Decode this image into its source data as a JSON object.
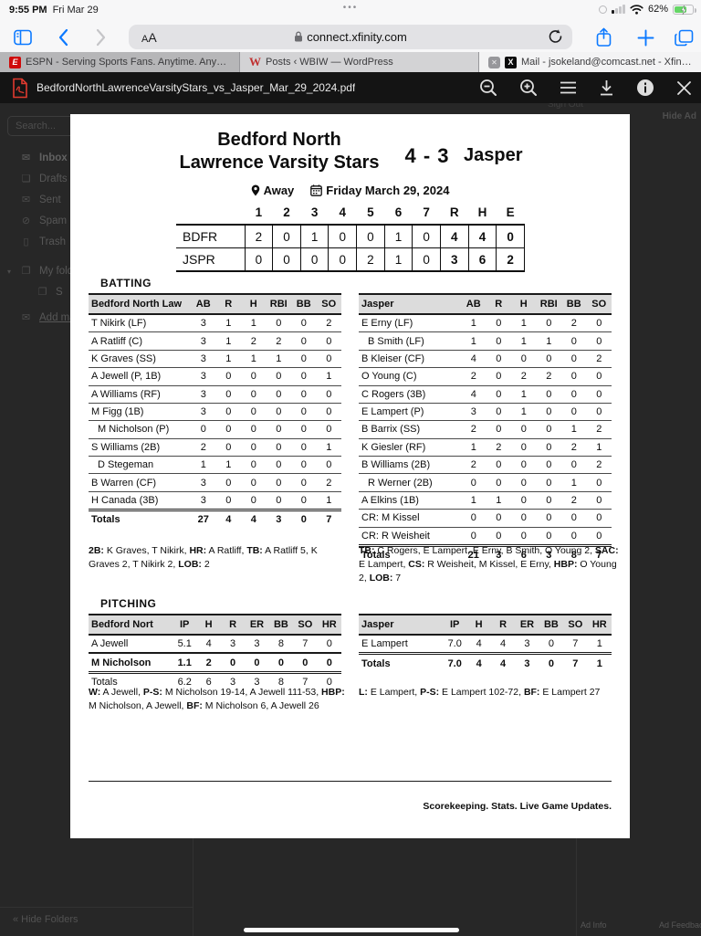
{
  "status_bar": {
    "time": "9:55 PM",
    "date": "Fri Mar 29",
    "ellipsis": "•••",
    "battery": "62%"
  },
  "browser": {
    "reader_label_small": "A",
    "reader_label_big": "A",
    "url": "connect.xfinity.com"
  },
  "tabs": [
    {
      "label": "ESPN - Serving Sports Fans. Anytime. Anywh...",
      "favicon": "espn-icon"
    },
    {
      "label": "Posts ‹ WBIW — WordPress",
      "favicon": "wordpress-icon"
    },
    {
      "label": "Mail - jsokeland@comcast.net - Xfinity Conn...",
      "favicon": "xfinity-icon",
      "close": "✕"
    }
  ],
  "pdf_toolbar": {
    "filename": "BedfordNorthLawrenceVarsityStars_vs_Jasper_Mar_29_2024.pdf"
  },
  "mail_sidebar": {
    "search_placeholder": "Search...",
    "items": [
      {
        "icon": "✉",
        "label": "Inbox"
      },
      {
        "icon": "❏",
        "label": "Drafts"
      },
      {
        "icon": "✉",
        "label": "Sent"
      },
      {
        "icon": "⊘",
        "label": "Spam"
      },
      {
        "icon": "▯",
        "label": "Trash"
      },
      {
        "icon": "❐",
        "label": "My folders"
      },
      {
        "icon": "❐",
        "label": "S"
      },
      {
        "icon": "✉",
        "label": "Add mailbox"
      }
    ],
    "hide_folders": "« Hide Folders"
  },
  "overlay": {
    "hide_ad": "Hide Ad",
    "sign_out": "Sign Out",
    "ad_info": "Ad Info",
    "ad_feedback": "Ad Feedback"
  },
  "scorecard": {
    "team_home": "Bedford North Lawrence Varsity Stars",
    "score": "4 - 3",
    "team_away": "Jasper",
    "location": "Away",
    "game_date": "Friday March 29, 2024",
    "linescore": {
      "head": [
        "",
        "1",
        "2",
        "3",
        "4",
        "5",
        "6",
        "7",
        "R",
        "H",
        "E"
      ],
      "boldCols": [
        8,
        9,
        10
      ],
      "rows": [
        {
          "cells": [
            "BDFR",
            "2",
            "0",
            "1",
            "0",
            "0",
            "1",
            "0",
            "4",
            "4",
            "0"
          ]
        },
        {
          "cells": [
            "JSPR",
            "0",
            "0",
            "0",
            "0",
            "2",
            "1",
            "0",
            "3",
            "6",
            "2"
          ]
        }
      ]
    },
    "batting_heading": "BATTING",
    "pitching_heading": "PITCHING",
    "batting_home": {
      "head": [
        "Bedford North Law",
        "AB",
        "R",
        "H",
        "RBI",
        "BB",
        "SO"
      ],
      "rows": [
        {
          "cells": [
            "T Nikirk (LF)",
            "3",
            "1",
            "1",
            "0",
            "0",
            "2"
          ]
        },
        {
          "cells": [
            "A Ratliff (C)",
            "3",
            "1",
            "2",
            "2",
            "0",
            "0"
          ]
        },
        {
          "cells": [
            "K Graves (SS)",
            "3",
            "1",
            "1",
            "1",
            "0",
            "0"
          ]
        },
        {
          "cells": [
            "A Jewell (P, 1B)",
            "3",
            "0",
            "0",
            "0",
            "0",
            "1"
          ]
        },
        {
          "cells": [
            "A Williams (RF)",
            "3",
            "0",
            "0",
            "0",
            "0",
            "0"
          ]
        },
        {
          "cells": [
            "M Figg (1B)",
            "3",
            "0",
            "0",
            "0",
            "0",
            "0"
          ]
        },
        {
          "cells": [
            "M Nicholson (P)",
            "0",
            "0",
            "0",
            "0",
            "0",
            "0"
          ],
          "flags": [
            "indent"
          ]
        },
        {
          "cells": [
            "S Williams (2B)",
            "2",
            "0",
            "0",
            "0",
            "0",
            "1"
          ]
        },
        {
          "cells": [
            "D Stegeman",
            "1",
            "1",
            "0",
            "0",
            "0",
            "0"
          ],
          "flags": [
            "indent"
          ]
        },
        {
          "cells": [
            "B Warren (CF)",
            "3",
            "0",
            "0",
            "0",
            "0",
            "2"
          ]
        },
        {
          "cells": [
            "H Canada (3B)",
            "3",
            "0",
            "0",
            "0",
            "0",
            "1"
          ]
        },
        {
          "cells": [
            "Totals",
            "27",
            "4",
            "4",
            "3",
            "0",
            "7"
          ],
          "flags": [
            "sep",
            "bold"
          ]
        }
      ]
    },
    "batting_away": {
      "head": [
        "Jasper",
        "AB",
        "R",
        "H",
        "RBI",
        "BB",
        "SO"
      ],
      "rows": [
        {
          "cells": [
            "E Erny (LF)",
            "1",
            "0",
            "1",
            "0",
            "2",
            "0"
          ]
        },
        {
          "cells": [
            "B Smith (LF)",
            "1",
            "0",
            "1",
            "1",
            "0",
            "0"
          ],
          "flags": [
            "indent"
          ]
        },
        {
          "cells": [
            "B Kleiser (CF)",
            "4",
            "0",
            "0",
            "0",
            "0",
            "2"
          ]
        },
        {
          "cells": [
            "O Young (C)",
            "2",
            "0",
            "2",
            "2",
            "0",
            "0"
          ]
        },
        {
          "cells": [
            "C Rogers (3B)",
            "4",
            "0",
            "1",
            "0",
            "0",
            "0"
          ]
        },
        {
          "cells": [
            "E Lampert (P)",
            "3",
            "0",
            "1",
            "0",
            "0",
            "0"
          ]
        },
        {
          "cells": [
            "B Barrix (SS)",
            "2",
            "0",
            "0",
            "0",
            "1",
            "2"
          ]
        },
        {
          "cells": [
            "K Giesler (RF)",
            "1",
            "2",
            "0",
            "0",
            "2",
            "1"
          ]
        },
        {
          "cells": [
            "B Williams (2B)",
            "2",
            "0",
            "0",
            "0",
            "0",
            "2"
          ]
        },
        {
          "cells": [
            "R Werner (2B)",
            "0",
            "0",
            "0",
            "0",
            "1",
            "0"
          ],
          "flags": [
            "indent"
          ]
        },
        {
          "cells": [
            "A Elkins (1B)",
            "1",
            "1",
            "0",
            "0",
            "2",
            "0"
          ]
        },
        {
          "cells": [
            "CR: M Kissel",
            "0",
            "0",
            "0",
            "0",
            "0",
            "0"
          ]
        },
        {
          "cells": [
            "CR: R Weisheit",
            "0",
            "0",
            "0",
            "0",
            "0",
            "0"
          ]
        },
        {
          "cells": [
            "Totals",
            "21",
            "3",
            "6",
            "3",
            "8",
            "7"
          ],
          "flags": [
            "sep",
            "bold"
          ]
        }
      ]
    },
    "batting_home_notes": [
      [
        "2B:",
        "K Graves, T Nikirk,"
      ],
      [
        "HR:",
        "A Ratliff,"
      ],
      [
        "TB:",
        "A Ratliff 5, K Graves 2, T Nikirk 2,"
      ],
      [
        "LOB:",
        "2"
      ]
    ],
    "batting_away_notes": [
      [
        "TB:",
        "C Rogers, E Lampert, E Erny, B Smith, O Young 2,"
      ],
      [
        "SAC:",
        "E Lampert,"
      ],
      [
        "CS:",
        "R Weisheit, M Kissel, E Erny,"
      ],
      [
        "HBP:",
        "O Young 2,"
      ],
      [
        "LOB:",
        "7"
      ]
    ],
    "pitching_home": {
      "head": [
        "Bedford Nort",
        "IP",
        "H",
        "R",
        "ER",
        "BB",
        "SO",
        "HR"
      ],
      "rows": [
        {
          "cells": [
            "A Jewell",
            "5.1",
            "4",
            "3",
            "3",
            "8",
            "7",
            "0"
          ]
        },
        {
          "cells": [
            "M Nicholson",
            "1.1",
            "2",
            "0",
            "0",
            "0",
            "0",
            "0"
          ],
          "flags": [
            "thick",
            "bold"
          ]
        },
        {
          "cells": [
            "Totals",
            "6.2",
            "6",
            "3",
            "3",
            "8",
            "7",
            "0"
          ],
          "flags": [
            "sep"
          ]
        }
      ]
    },
    "pitching_away": {
      "head": [
        "Jasper",
        "IP",
        "H",
        "R",
        "ER",
        "BB",
        "SO",
        "HR"
      ],
      "rows": [
        {
          "cells": [
            "E Lampert",
            "7.0",
            "4",
            "4",
            "3",
            "0",
            "7",
            "1"
          ]
        },
        {
          "cells": [
            "Totals",
            "7.0",
            "4",
            "4",
            "3",
            "0",
            "7",
            "1"
          ],
          "flags": [
            "sep",
            "bold"
          ]
        }
      ]
    },
    "pitching_home_notes": [
      [
        "W:",
        "A Jewell,"
      ],
      [
        "P-S:",
        "M Nicholson 19-14, A Jewell 111-53,"
      ],
      [
        "HBP:",
        "M Nicholson, A Jewell,"
      ],
      [
        "BF:",
        "M Nicholson 6, A Jewell 26"
      ]
    ],
    "pitching_away_notes": [
      [
        "L:",
        "E Lampert,"
      ],
      [
        "P-S:",
        "E Lampert 102-72,"
      ],
      [
        "BF:",
        "E Lampert 27"
      ]
    ],
    "page_footer": "Scorekeeping. Stats. Live Game Updates."
  }
}
